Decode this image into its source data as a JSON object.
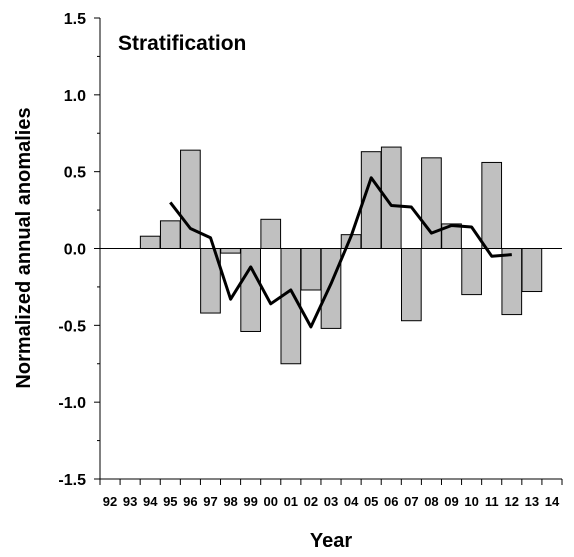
{
  "chart_data": {
    "type": "bar",
    "title": "Stratification",
    "xlabel": "Year",
    "ylabel": "Normalized annual anomalies",
    "ylim": [
      -1.5,
      1.5
    ],
    "yticks": [
      "-1.5",
      "-1.0",
      "-0.5",
      "0.0",
      "0.5",
      "1.0",
      "1.5"
    ],
    "categories": [
      "92",
      "93",
      "94",
      "95",
      "96",
      "97",
      "98",
      "99",
      "00",
      "01",
      "02",
      "03",
      "04",
      "05",
      "06",
      "07",
      "08",
      "09",
      "10",
      "11",
      "12",
      "13",
      "14"
    ],
    "series": [
      {
        "kind": "bar",
        "values": [
          null,
          null,
          0.08,
          0.18,
          0.64,
          -0.42,
          -0.03,
          -0.54,
          0.19,
          -0.75,
          -0.27,
          -0.52,
          0.09,
          0.63,
          0.66,
          -0.47,
          0.59,
          0.16,
          -0.3,
          0.56,
          -0.43,
          -0.28,
          null
        ],
        "color": "#c0c0c0"
      },
      {
        "kind": "line",
        "values": [
          null,
          null,
          null,
          0.3,
          0.13,
          0.07,
          -0.33,
          -0.12,
          -0.36,
          -0.27,
          -0.51,
          -0.23,
          0.08,
          0.46,
          0.28,
          0.27,
          0.1,
          0.15,
          0.14,
          -0.05,
          -0.04,
          null,
          null
        ],
        "color": "#000000"
      }
    ],
    "grid": false,
    "legend": "none"
  }
}
